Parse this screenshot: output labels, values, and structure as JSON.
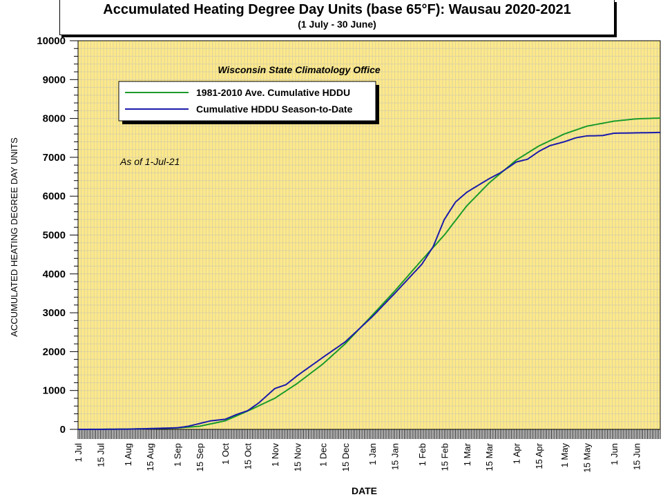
{
  "chart_data": {
    "type": "line",
    "title": "Accumulated Heating Degree Day Units (base 65°F): Wausau 2020-2021",
    "subtitle": "(1 July - 30 June)",
    "xlabel": "DATE",
    "ylabel": "ACCUMULATED HEATING DEGREE DAY UNITS",
    "ylim": [
      0,
      10000
    ],
    "yticks": [
      0,
      1000,
      2000,
      3000,
      4000,
      5000,
      6000,
      7000,
      8000,
      9000,
      10000
    ],
    "xlim": [
      "2020-07-01",
      "2021-06-30"
    ],
    "xtick_labels": [
      {
        "date": "2020-07-01",
        "label": "1 Jul"
      },
      {
        "date": "2020-07-15",
        "label": "15 Jul"
      },
      {
        "date": "2020-08-01",
        "label": "1 Aug"
      },
      {
        "date": "2020-08-15",
        "label": "15 Aug"
      },
      {
        "date": "2020-09-01",
        "label": "1 Sep"
      },
      {
        "date": "2020-09-15",
        "label": "15 Sep"
      },
      {
        "date": "2020-10-01",
        "label": "1 Oct"
      },
      {
        "date": "2020-10-15",
        "label": "15 Oct"
      },
      {
        "date": "2020-11-01",
        "label": "1 Nov"
      },
      {
        "date": "2020-11-15",
        "label": "15 Nov"
      },
      {
        "date": "2020-12-01",
        "label": "1 Dec"
      },
      {
        "date": "2020-12-15",
        "label": "15 Dec"
      },
      {
        "date": "2021-01-01",
        "label": "1 Jan"
      },
      {
        "date": "2021-01-15",
        "label": "15 Jan"
      },
      {
        "date": "2021-02-01",
        "label": "1 Feb"
      },
      {
        "date": "2021-02-15",
        "label": "15 Feb"
      },
      {
        "date": "2021-03-01",
        "label": "1 Mar"
      },
      {
        "date": "2021-03-15",
        "label": "15 Mar"
      },
      {
        "date": "2021-04-01",
        "label": "1 Apr"
      },
      {
        "date": "2021-04-15",
        "label": "15 Apr"
      },
      {
        "date": "2021-05-01",
        "label": "1 May"
      },
      {
        "date": "2021-05-15",
        "label": "15 May"
      },
      {
        "date": "2021-06-01",
        "label": "1 Jun"
      },
      {
        "date": "2021-06-15",
        "label": "15 Jun"
      }
    ],
    "grid": true,
    "background_color": "#fde98a",
    "grid_color": "#dcd2a0",
    "legend_position": "top-left",
    "annotations": {
      "source": "Wisconsin State Climatology Office",
      "as_of": "As of 1-Jul-21"
    },
    "series": [
      {
        "name": "1981-2010 Ave. Cumulative HDDU",
        "color": "#1a9a2a",
        "points": [
          [
            "2020-07-01",
            0
          ],
          [
            "2020-07-15",
            2
          ],
          [
            "2020-08-01",
            8
          ],
          [
            "2020-08-15",
            18
          ],
          [
            "2020-09-01",
            35
          ],
          [
            "2020-09-15",
            80
          ],
          [
            "2020-10-01",
            220
          ],
          [
            "2020-10-15",
            470
          ],
          [
            "2020-11-01",
            800
          ],
          [
            "2020-11-15",
            1180
          ],
          [
            "2020-12-01",
            1680
          ],
          [
            "2020-12-15",
            2200
          ],
          [
            "2021-01-01",
            2940
          ],
          [
            "2021-01-15",
            3560
          ],
          [
            "2021-02-01",
            4360
          ],
          [
            "2021-02-15",
            5000
          ],
          [
            "2021-03-01",
            5750
          ],
          [
            "2021-03-15",
            6340
          ],
          [
            "2021-04-01",
            6930
          ],
          [
            "2021-04-15",
            7290
          ],
          [
            "2021-05-01",
            7600
          ],
          [
            "2021-05-15",
            7800
          ],
          [
            "2021-06-01",
            7930
          ],
          [
            "2021-06-15",
            7990
          ],
          [
            "2021-06-30",
            8010
          ]
        ]
      },
      {
        "name": "Cumulative HDDU Season-to-Date",
        "color": "#1a1aaa",
        "points": [
          [
            "2020-07-01",
            0
          ],
          [
            "2020-07-15",
            0
          ],
          [
            "2020-08-01",
            5
          ],
          [
            "2020-08-15",
            20
          ],
          [
            "2020-09-01",
            40
          ],
          [
            "2020-09-08",
            80
          ],
          [
            "2020-09-15",
            150
          ],
          [
            "2020-09-22",
            220
          ],
          [
            "2020-10-01",
            260
          ],
          [
            "2020-10-08",
            380
          ],
          [
            "2020-10-15",
            480
          ],
          [
            "2020-10-22",
            680
          ],
          [
            "2020-11-01",
            1050
          ],
          [
            "2020-11-08",
            1150
          ],
          [
            "2020-11-15",
            1380
          ],
          [
            "2020-12-01",
            1850
          ],
          [
            "2020-12-15",
            2250
          ],
          [
            "2021-01-01",
            2900
          ],
          [
            "2021-01-15",
            3500
          ],
          [
            "2021-02-01",
            4250
          ],
          [
            "2021-02-08",
            4700
          ],
          [
            "2021-02-15",
            5400
          ],
          [
            "2021-02-22",
            5850
          ],
          [
            "2021-03-01",
            6100
          ],
          [
            "2021-03-15",
            6450
          ],
          [
            "2021-03-22",
            6600
          ],
          [
            "2021-04-01",
            6880
          ],
          [
            "2021-04-08",
            6950
          ],
          [
            "2021-04-15",
            7150
          ],
          [
            "2021-04-22",
            7300
          ],
          [
            "2021-05-01",
            7400
          ],
          [
            "2021-05-08",
            7500
          ],
          [
            "2021-05-15",
            7550
          ],
          [
            "2021-05-25",
            7560
          ],
          [
            "2021-06-01",
            7620
          ],
          [
            "2021-06-15",
            7630
          ],
          [
            "2021-06-30",
            7640
          ]
        ]
      }
    ]
  }
}
